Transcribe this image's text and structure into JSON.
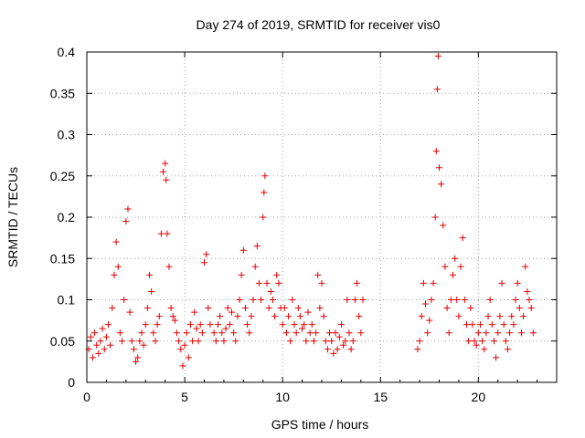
{
  "chart_data": {
    "type": "scatter",
    "title": "Day 274 of 2019, SRMTID for receiver vis0",
    "xlabel": "GPS time / hours",
    "ylabel": "SRMTID / TECUs",
    "xlim": [
      0,
      24
    ],
    "ylim": [
      0,
      0.4
    ],
    "xticks": [
      "0",
      "5",
      "10",
      "15",
      "20"
    ],
    "yticks": [
      "0",
      "0.05",
      "0.1",
      "0.15",
      "0.2",
      "0.25",
      "0.3",
      "0.35",
      "0.4"
    ],
    "grid": true,
    "marker": "+",
    "color": "#e00000",
    "series": [
      {
        "name": "SRMTID",
        "points": [
          [
            0.1,
            0.04
          ],
          [
            0.2,
            0.055
          ],
          [
            0.3,
            0.03
          ],
          [
            0.4,
            0.06
          ],
          [
            0.5,
            0.045
          ],
          [
            0.6,
            0.035
          ],
          [
            0.7,
            0.05
          ],
          [
            0.8,
            0.065
          ],
          [
            0.9,
            0.04
          ],
          [
            1.0,
            0.055
          ],
          [
            1.1,
            0.07
          ],
          [
            1.2,
            0.045
          ],
          [
            1.3,
            0.09
          ],
          [
            1.4,
            0.13
          ],
          [
            1.5,
            0.17
          ],
          [
            1.6,
            0.14
          ],
          [
            1.7,
            0.06
          ],
          [
            1.8,
            0.05
          ],
          [
            1.9,
            0.1
          ],
          [
            2.0,
            0.195
          ],
          [
            2.1,
            0.21
          ],
          [
            2.2,
            0.085
          ],
          [
            2.3,
            0.05
          ],
          [
            2.4,
            0.04
          ],
          [
            2.5,
            0.025
          ],
          [
            2.6,
            0.03
          ],
          [
            2.7,
            0.05
          ],
          [
            2.8,
            0.06
          ],
          [
            2.9,
            0.045
          ],
          [
            3.0,
            0.07
          ],
          [
            3.1,
            0.09
          ],
          [
            3.2,
            0.13
          ],
          [
            3.3,
            0.11
          ],
          [
            3.4,
            0.06
          ],
          [
            3.5,
            0.05
          ],
          [
            3.6,
            0.07
          ],
          [
            3.7,
            0.08
          ],
          [
            3.8,
            0.18
          ],
          [
            3.9,
            0.255
          ],
          [
            4.0,
            0.265
          ],
          [
            4.05,
            0.245
          ],
          [
            4.1,
            0.18
          ],
          [
            4.2,
            0.14
          ],
          [
            4.3,
            0.09
          ],
          [
            4.4,
            0.08
          ],
          [
            4.5,
            0.075
          ],
          [
            4.6,
            0.06
          ],
          [
            4.7,
            0.05
          ],
          [
            4.8,
            0.04
          ],
          [
            4.9,
            0.02
          ],
          [
            5.0,
            0.045
          ],
          [
            5.1,
            0.06
          ],
          [
            5.2,
            0.03
          ],
          [
            5.3,
            0.07
          ],
          [
            5.4,
            0.05
          ],
          [
            5.5,
            0.085
          ],
          [
            5.6,
            0.065
          ],
          [
            5.7,
            0.05
          ],
          [
            5.8,
            0.07
          ],
          [
            5.9,
            0.06
          ],
          [
            6.0,
            0.145
          ],
          [
            6.1,
            0.155
          ],
          [
            6.2,
            0.09
          ],
          [
            6.3,
            0.07
          ],
          [
            6.5,
            0.06
          ],
          [
            6.6,
            0.05
          ],
          [
            6.7,
            0.07
          ],
          [
            6.8,
            0.08
          ],
          [
            6.9,
            0.06
          ],
          [
            7.0,
            0.05
          ],
          [
            7.1,
            0.065
          ],
          [
            7.2,
            0.09
          ],
          [
            7.3,
            0.07
          ],
          [
            7.4,
            0.085
          ],
          [
            7.5,
            0.06
          ],
          [
            7.6,
            0.05
          ],
          [
            7.7,
            0.08
          ],
          [
            7.8,
            0.1
          ],
          [
            7.9,
            0.13
          ],
          [
            8.0,
            0.16
          ],
          [
            8.1,
            0.09
          ],
          [
            8.2,
            0.07
          ],
          [
            8.3,
            0.06
          ],
          [
            8.4,
            0.08
          ],
          [
            8.5,
            0.1
          ],
          [
            8.6,
            0.14
          ],
          [
            8.7,
            0.165
          ],
          [
            8.8,
            0.12
          ],
          [
            8.9,
            0.1
          ],
          [
            9.0,
            0.2
          ],
          [
            9.05,
            0.23
          ],
          [
            9.1,
            0.25
          ],
          [
            9.2,
            0.12
          ],
          [
            9.3,
            0.09
          ],
          [
            9.4,
            0.11
          ],
          [
            9.5,
            0.1
          ],
          [
            9.6,
            0.08
          ],
          [
            9.7,
            0.13
          ],
          [
            9.8,
            0.12
          ],
          [
            9.9,
            0.09
          ],
          [
            10.0,
            0.07
          ],
          [
            10.1,
            0.09
          ],
          [
            10.2,
            0.06
          ],
          [
            10.3,
            0.08
          ],
          [
            10.4,
            0.05
          ],
          [
            10.5,
            0.1
          ],
          [
            10.6,
            0.07
          ],
          [
            10.7,
            0.06
          ],
          [
            10.8,
            0.09
          ],
          [
            10.9,
            0.08
          ],
          [
            11.0,
            0.065
          ],
          [
            11.1,
            0.07
          ],
          [
            11.2,
            0.05
          ],
          [
            11.3,
            0.085
          ],
          [
            11.4,
            0.06
          ],
          [
            11.5,
            0.07
          ],
          [
            11.6,
            0.05
          ],
          [
            11.7,
            0.06
          ],
          [
            11.8,
            0.13
          ],
          [
            11.9,
            0.09
          ],
          [
            12.0,
            0.12
          ],
          [
            12.1,
            0.08
          ],
          [
            12.2,
            0.05
          ],
          [
            12.3,
            0.04
          ],
          [
            12.4,
            0.06
          ],
          [
            12.5,
            0.05
          ],
          [
            12.6,
            0.035
          ],
          [
            12.7,
            0.06
          ],
          [
            12.8,
            0.04
          ],
          [
            12.9,
            0.055
          ],
          [
            13.0,
            0.07
          ],
          [
            13.1,
            0.045
          ],
          [
            13.2,
            0.05
          ],
          [
            13.3,
            0.1
          ],
          [
            13.4,
            0.06
          ],
          [
            13.5,
            0.04
          ],
          [
            13.6,
            0.05
          ],
          [
            13.7,
            0.1
          ],
          [
            13.8,
            0.12
          ],
          [
            13.9,
            0.08
          ],
          [
            14.0,
            0.06
          ],
          [
            14.1,
            0.1
          ],
          [
            16.9,
            0.04
          ],
          [
            17.0,
            0.05
          ],
          [
            17.1,
            0.08
          ],
          [
            17.2,
            0.12
          ],
          [
            17.3,
            0.095
          ],
          [
            17.4,
            0.06
          ],
          [
            17.5,
            0.075
          ],
          [
            17.6,
            0.1
          ],
          [
            17.7,
            0.12
          ],
          [
            17.8,
            0.2
          ],
          [
            17.85,
            0.28
          ],
          [
            17.9,
            0.355
          ],
          [
            17.95,
            0.395
          ],
          [
            18.0,
            0.26
          ],
          [
            18.1,
            0.24
          ],
          [
            18.2,
            0.19
          ],
          [
            18.3,
            0.14
          ],
          [
            18.4,
            0.09
          ],
          [
            18.5,
            0.06
          ],
          [
            18.6,
            0.1
          ],
          [
            18.7,
            0.13
          ],
          [
            18.8,
            0.15
          ],
          [
            18.9,
            0.1
          ],
          [
            19.0,
            0.08
          ],
          [
            19.1,
            0.14
          ],
          [
            19.2,
            0.175
          ],
          [
            19.3,
            0.1
          ],
          [
            19.4,
            0.07
          ],
          [
            19.5,
            0.05
          ],
          [
            19.6,
            0.09
          ],
          [
            19.7,
            0.07
          ],
          [
            19.8,
            0.05
          ],
          [
            19.9,
            0.045
          ],
          [
            20.0,
            0.06
          ],
          [
            20.1,
            0.07
          ],
          [
            20.2,
            0.05
          ],
          [
            20.3,
            0.04
          ],
          [
            20.4,
            0.06
          ],
          [
            20.5,
            0.08
          ],
          [
            20.6,
            0.1
          ],
          [
            20.7,
            0.07
          ],
          [
            20.8,
            0.05
          ],
          [
            20.9,
            0.03
          ],
          [
            21.0,
            0.06
          ],
          [
            21.1,
            0.08
          ],
          [
            21.2,
            0.12
          ],
          [
            21.3,
            0.07
          ],
          [
            21.4,
            0.05
          ],
          [
            21.5,
            0.04
          ],
          [
            21.6,
            0.06
          ],
          [
            21.7,
            0.08
          ],
          [
            21.8,
            0.07
          ],
          [
            21.9,
            0.1
          ],
          [
            22.0,
            0.12
          ],
          [
            22.1,
            0.09
          ],
          [
            22.2,
            0.06
          ],
          [
            22.3,
            0.08
          ],
          [
            22.4,
            0.14
          ],
          [
            22.5,
            0.11
          ],
          [
            22.6,
            0.1
          ],
          [
            22.7,
            0.09
          ],
          [
            22.8,
            0.06
          ]
        ]
      }
    ]
  }
}
